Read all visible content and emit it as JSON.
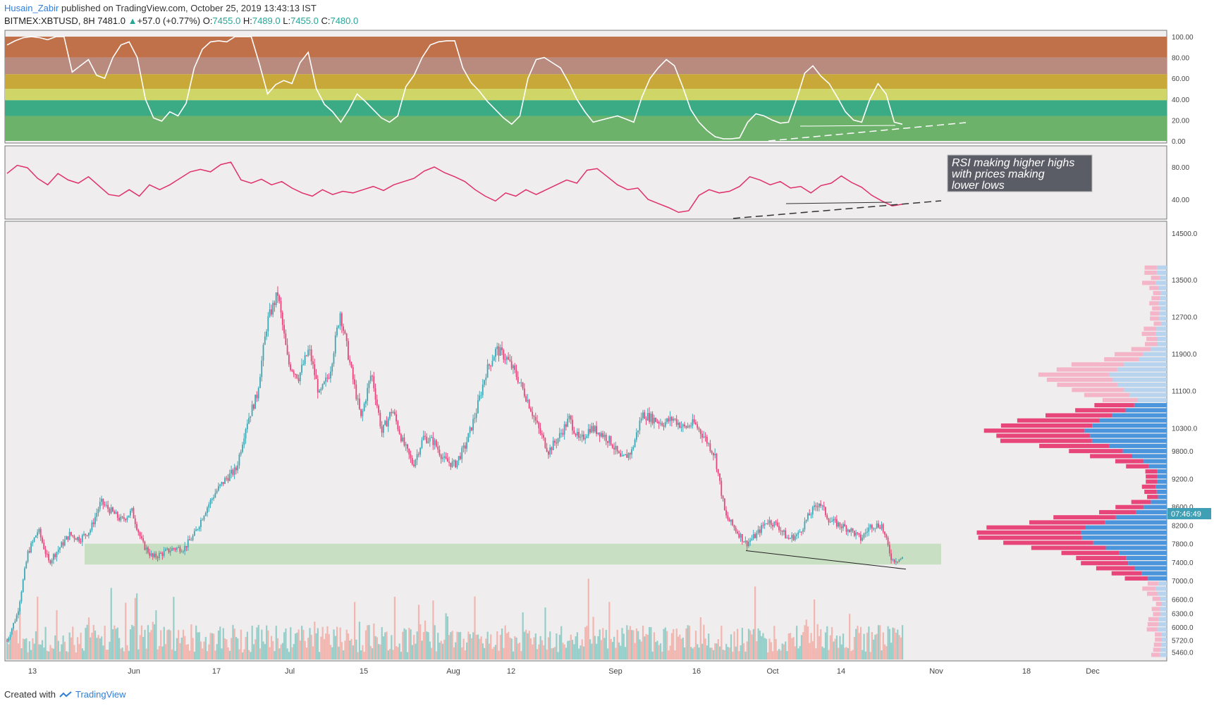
{
  "header": {
    "author": "Husain_Zabir",
    "published": "published on TradingView.com, October 25, 2019 13:43:13 IST",
    "symbol": "BITMEX:XBTUSD, 8H",
    "last": "7481.0",
    "change": "+57.0 (+0.77%)",
    "o_label": "O:",
    "o": "7455.0",
    "h_label": "H:",
    "h": "7489.0",
    "l_label": "L:",
    "l": "7455.0",
    "c_label": "C:",
    "c": "7480.0"
  },
  "footer": {
    "created_with": "Created with",
    "brand": "TradingView"
  },
  "annotation": "RSI making higher highs with prices making lower lows",
  "current_price_tag": "07:46:49",
  "chart_data": [
    {
      "type": "line",
      "name": "stochastic-rsi",
      "ylim": [
        0,
        100
      ],
      "y_ticks": [
        "100.00",
        "80.00",
        "60.00",
        "40.00",
        "20.00",
        "0.00"
      ],
      "bands": [
        {
          "from": 80,
          "to": 100,
          "color": "#c0714a"
        },
        {
          "from": 64,
          "to": 80,
          "color": "#b98a7e"
        },
        {
          "from": 50,
          "to": 64,
          "color": "#c9a83a"
        },
        {
          "from": 39,
          "to": 50,
          "color": "#cfd566"
        },
        {
          "from": 24,
          "to": 39,
          "color": "#3aab84"
        },
        {
          "from": 0,
          "to": 24,
          "color": "#6db26a"
        }
      ],
      "line_color": "#ffffff",
      "values": [
        92,
        96,
        99,
        100,
        99,
        97,
        100,
        100,
        66,
        72,
        78,
        63,
        60,
        80,
        92,
        95,
        80,
        40,
        22,
        19,
        28,
        24,
        36,
        70,
        88,
        95,
        96,
        95,
        100,
        100,
        100,
        74,
        45,
        54,
        58,
        55,
        75,
        85,
        50,
        35,
        28,
        18,
        30,
        45,
        38,
        30,
        22,
        18,
        24,
        52,
        63,
        80,
        92,
        95,
        96,
        96,
        70,
        56,
        48,
        38,
        30,
        22,
        16,
        24,
        60,
        78,
        80,
        75,
        70,
        56,
        40,
        28,
        18,
        20,
        22,
        24,
        21,
        18,
        42,
        60,
        70,
        78,
        72,
        52,
        30,
        18,
        10,
        4,
        2,
        2,
        3,
        18,
        26,
        24,
        20,
        17,
        18,
        40,
        65,
        72,
        62,
        55,
        42,
        28,
        20,
        18,
        40,
        55,
        45,
        18,
        16
      ]
    },
    {
      "type": "line",
      "name": "rsi",
      "ylim": [
        20,
        100
      ],
      "y_ticks": [
        "80.00",
        "40.00"
      ],
      "line_color": "#e0306d",
      "values": [
        72,
        82,
        79,
        66,
        58,
        72,
        64,
        60,
        68,
        57,
        46,
        44,
        52,
        44,
        58,
        52,
        58,
        66,
        74,
        77,
        74,
        83,
        86,
        64,
        60,
        65,
        58,
        62,
        54,
        48,
        44,
        52,
        46,
        50,
        48,
        52,
        56,
        51,
        58,
        62,
        66,
        75,
        80,
        73,
        68,
        62,
        52,
        44,
        38,
        48,
        44,
        52,
        46,
        52,
        58,
        64,
        60,
        76,
        78,
        68,
        58,
        52,
        54,
        40,
        35,
        30,
        24,
        26,
        45,
        52,
        48,
        50,
        56,
        68,
        64,
        58,
        62,
        54,
        56,
        48,
        57,
        60,
        69,
        61,
        55,
        45,
        38,
        32,
        34
      ]
    },
    {
      "type": "candlestick",
      "name": "XBTUSD 8H",
      "ylim": [
        5300,
        14700
      ],
      "y_ticks": [
        "14500.0",
        "13500.0",
        "12700.0",
        "11900.0",
        "11100.0",
        "10300.0",
        "9800.0",
        "9200.0",
        "8600.0",
        "8200.0",
        "7800.0",
        "7400.0",
        "7000.0",
        "6600.0",
        "6300.0",
        "6000.0",
        "5720.0",
        "5460.0"
      ],
      "x_ticks": [
        "13",
        "Jun",
        "17",
        "Jul",
        "15",
        "Aug",
        "12",
        "Sep",
        "16",
        "Oct",
        "14",
        "Nov",
        "18",
        "Dec"
      ],
      "close_path": [
        5700,
        6300,
        7600,
        8100,
        7400,
        7700,
        8000,
        7900,
        8100,
        8700,
        8500,
        8300,
        8500,
        7800,
        7500,
        7600,
        7700,
        7700,
        8000,
        8500,
        8900,
        9200,
        9400,
        10400,
        11000,
        12600,
        13200,
        11700,
        11400,
        12000,
        11000,
        11500,
        12800,
        11600,
        10500,
        11500,
        10200,
        10700,
        10000,
        9500,
        10100,
        10000,
        9600,
        9500,
        9900,
        10600,
        11500,
        12000,
        11800,
        11400,
        10900,
        10300,
        9800,
        10100,
        10500,
        10000,
        10300,
        10200,
        10000,
        9600,
        9800,
        10600,
        10500,
        10400,
        10500,
        10300,
        10400,
        10100,
        9700,
        8400,
        8100,
        7800,
        8000,
        8300,
        8200,
        7900,
        8000,
        8400,
        8700,
        8300,
        8200,
        8100,
        7900,
        8200,
        8200,
        7450,
        7480
      ],
      "volume_profile_note": "horizontal volume-by-price histogram on right",
      "support_zone": [
        7350,
        7800
      ]
    }
  ]
}
